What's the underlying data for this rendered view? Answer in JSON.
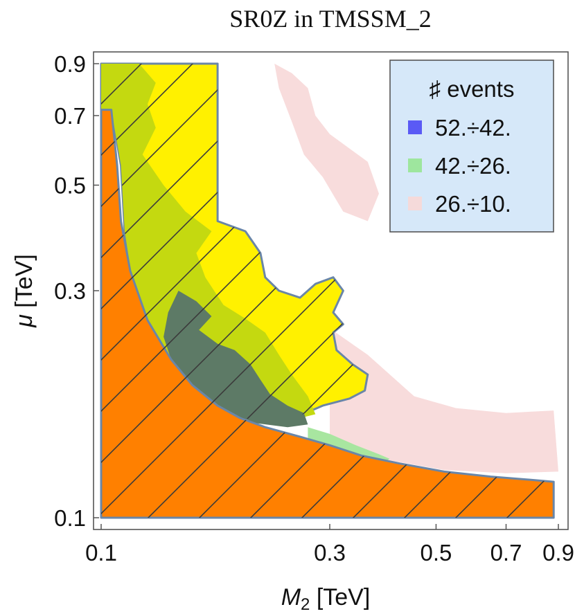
{
  "chart_data": {
    "type": "contour",
    "title": "SR0Z in TMSSM_2",
    "xlabel": {
      "symbol": "M",
      "subscript": "2",
      "unit": "[TeV]"
    },
    "ylabel": {
      "symbol": "μ",
      "unit": "[TeV]"
    },
    "x_scale": "log",
    "y_scale": "log",
    "xlim": [
      0.1,
      0.9
    ],
    "ylim": [
      0.1,
      0.9
    ],
    "x_ticks": [
      {
        "value": 0.1,
        "label": "0.1"
      },
      {
        "value": 0.3,
        "label": "0.3"
      },
      {
        "value": 0.5,
        "label": "0.5"
      },
      {
        "value": 0.7,
        "label": "0.7"
      },
      {
        "value": 0.9,
        "label": "0.9"
      }
    ],
    "y_ticks": [
      {
        "value": 0.1,
        "label": "0.1"
      },
      {
        "value": 0.3,
        "label": "0.3"
      },
      {
        "value": 0.5,
        "label": "0.5"
      },
      {
        "value": 0.7,
        "label": "0.7"
      },
      {
        "value": 0.9,
        "label": "0.9"
      }
    ],
    "legend": {
      "title": "♯ events",
      "position": "top-right",
      "entries": [
        {
          "label": "52.÷42.",
          "color": "#5a5af5"
        },
        {
          "label": "42.÷26.",
          "color": "#9ee69e"
        },
        {
          "label": "26.÷10.",
          "color": "#f5dada"
        }
      ]
    },
    "regions": [
      {
        "name": "light-pink-contour",
        "fill": "#f8dcdc",
        "points": [
          [
            0.3,
            0.25
          ],
          [
            0.36,
            0.22
          ],
          [
            0.45,
            0.18
          ],
          [
            0.55,
            0.17
          ],
          [
            0.7,
            0.166
          ],
          [
            0.88,
            0.168
          ],
          [
            0.9,
            0.125
          ],
          [
            0.7,
            0.124
          ],
          [
            0.52,
            0.126
          ],
          [
            0.4,
            0.132
          ],
          [
            0.34,
            0.14
          ],
          [
            0.3,
            0.15
          ]
        ]
      },
      {
        "name": "light-pink-patch-upper",
        "fill": "#f8dcdc",
        "points": [
          [
            0.23,
            0.9
          ],
          [
            0.25,
            0.86
          ],
          [
            0.27,
            0.8
          ],
          [
            0.28,
            0.7
          ],
          [
            0.3,
            0.64
          ],
          [
            0.36,
            0.56
          ],
          [
            0.38,
            0.48
          ],
          [
            0.36,
            0.42
          ],
          [
            0.32,
            0.44
          ],
          [
            0.29,
            0.52
          ],
          [
            0.265,
            0.58
          ],
          [
            0.25,
            0.68
          ],
          [
            0.235,
            0.8
          ]
        ]
      },
      {
        "name": "light-green-contour",
        "fill": "#a8e6a0",
        "points": [
          [
            0.27,
            0.155
          ],
          [
            0.3,
            0.15
          ],
          [
            0.34,
            0.142
          ],
          [
            0.38,
            0.136
          ],
          [
            0.4,
            0.133
          ],
          [
            0.38,
            0.128
          ],
          [
            0.34,
            0.131
          ],
          [
            0.3,
            0.136
          ],
          [
            0.27,
            0.143
          ]
        ]
      },
      {
        "name": "yellow-hatched-region",
        "fill": "#fff100",
        "points": [
          [
            0.1,
            0.9
          ],
          [
            0.175,
            0.9
          ],
          [
            0.175,
            0.42
          ],
          [
            0.2,
            0.4
          ],
          [
            0.215,
            0.36
          ],
          [
            0.22,
            0.32
          ],
          [
            0.235,
            0.3
          ],
          [
            0.26,
            0.29
          ],
          [
            0.28,
            0.31
          ],
          [
            0.305,
            0.32
          ],
          [
            0.32,
            0.3
          ],
          [
            0.305,
            0.27
          ],
          [
            0.32,
            0.255
          ],
          [
            0.305,
            0.245
          ],
          [
            0.31,
            0.225
          ],
          [
            0.335,
            0.21
          ],
          [
            0.36,
            0.2
          ],
          [
            0.355,
            0.185
          ],
          [
            0.33,
            0.178
          ],
          [
            0.29,
            0.172
          ],
          [
            0.26,
            0.164
          ],
          [
            0.22,
            0.16
          ],
          [
            0.195,
            0.162
          ],
          [
            0.175,
            0.172
          ],
          [
            0.155,
            0.19
          ],
          [
            0.14,
            0.215
          ],
          [
            0.125,
            0.26
          ],
          [
            0.117,
            0.3
          ],
          [
            0.112,
            0.4
          ],
          [
            0.11,
            0.55
          ],
          [
            0.105,
            0.72
          ],
          [
            0.1,
            0.72
          ]
        ]
      },
      {
        "name": "olive-green-contour",
        "fill": "#c4d910",
        "points": [
          [
            0.1,
            0.9
          ],
          [
            0.12,
            0.9
          ],
          [
            0.13,
            0.82
          ],
          [
            0.125,
            0.74
          ],
          [
            0.13,
            0.66
          ],
          [
            0.122,
            0.58
          ],
          [
            0.135,
            0.5
          ],
          [
            0.15,
            0.44
          ],
          [
            0.17,
            0.4
          ],
          [
            0.158,
            0.36
          ],
          [
            0.165,
            0.32
          ],
          [
            0.18,
            0.28
          ],
          [
            0.2,
            0.262
          ],
          [
            0.22,
            0.245
          ],
          [
            0.235,
            0.22
          ],
          [
            0.25,
            0.2
          ],
          [
            0.27,
            0.18
          ],
          [
            0.28,
            0.165
          ],
          [
            0.26,
            0.162
          ],
          [
            0.22,
            0.16
          ],
          [
            0.195,
            0.162
          ],
          [
            0.175,
            0.172
          ],
          [
            0.155,
            0.19
          ],
          [
            0.14,
            0.215
          ],
          [
            0.125,
            0.26
          ],
          [
            0.117,
            0.3
          ],
          [
            0.112,
            0.4
          ],
          [
            0.11,
            0.55
          ],
          [
            0.105,
            0.72
          ],
          [
            0.1,
            0.72
          ]
        ]
      },
      {
        "name": "dark-teal-contour",
        "fill": "#5d7a66",
        "points": [
          [
            0.145,
            0.3
          ],
          [
            0.158,
            0.285
          ],
          [
            0.17,
            0.265
          ],
          [
            0.16,
            0.248
          ],
          [
            0.175,
            0.232
          ],
          [
            0.19,
            0.225
          ],
          [
            0.205,
            0.21
          ],
          [
            0.215,
            0.195
          ],
          [
            0.225,
            0.182
          ],
          [
            0.245,
            0.172
          ],
          [
            0.265,
            0.166
          ],
          [
            0.27,
            0.157
          ],
          [
            0.245,
            0.155
          ],
          [
            0.21,
            0.158
          ],
          [
            0.19,
            0.163
          ],
          [
            0.17,
            0.175
          ],
          [
            0.152,
            0.193
          ],
          [
            0.14,
            0.215
          ],
          [
            0.135,
            0.24
          ],
          [
            0.138,
            0.27
          ]
        ]
      },
      {
        "name": "orange-excluded-region",
        "fill": "#ff8000",
        "points": [
          [
            0.1,
            0.1
          ],
          [
            0.1,
            0.72
          ],
          [
            0.105,
            0.72
          ],
          [
            0.108,
            0.55
          ],
          [
            0.11,
            0.42
          ],
          [
            0.115,
            0.33
          ],
          [
            0.125,
            0.26
          ],
          [
            0.14,
            0.215
          ],
          [
            0.155,
            0.19
          ],
          [
            0.175,
            0.172
          ],
          [
            0.195,
            0.162
          ],
          [
            0.22,
            0.155
          ],
          [
            0.26,
            0.148
          ],
          [
            0.3,
            0.142
          ],
          [
            0.35,
            0.135
          ],
          [
            0.42,
            0.13
          ],
          [
            0.52,
            0.125
          ],
          [
            0.65,
            0.122
          ],
          [
            0.8,
            0.12
          ],
          [
            0.88,
            0.119
          ],
          [
            0.88,
            0.1
          ]
        ]
      }
    ]
  }
}
